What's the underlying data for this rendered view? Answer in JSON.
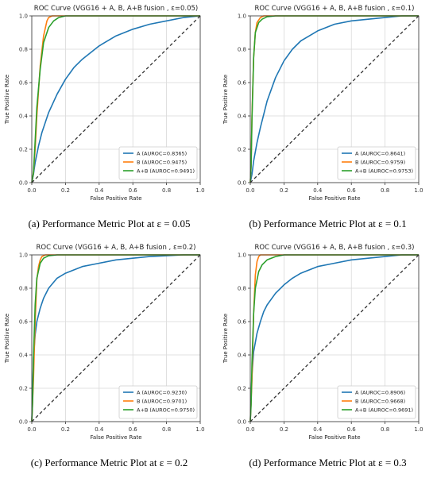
{
  "figure": {
    "captions": [
      "(a) Performance Metric Plot at ε = 0.05",
      "(b) Performance Metric Plot at ε = 0.1",
      "(c) Performance Metric Plot at ε = 0.2",
      "(d) Performance Metric Plot at ε = 0.3"
    ]
  },
  "colors": {
    "A": "#1f77b4",
    "B": "#ff7f0e",
    "AB": "#2ca02c",
    "diag": "#333333",
    "grid": "#d9d9d9"
  },
  "chart_data": [
    {
      "type": "line",
      "title": "ROC Curve (VGG16 + A, B, A+B fusion , ε=0.05)",
      "xlabel": "False Positive Rate",
      "ylabel": "True Positive Rate",
      "xlim": [
        0,
        1
      ],
      "ylim": [
        0,
        1
      ],
      "xticks": [
        "0.0",
        "0.2",
        "0.4",
        "0.6",
        "0.8",
        "1.0"
      ],
      "yticks": [
        "0.0",
        "0.2",
        "0.4",
        "0.6",
        "0.8",
        "1.0"
      ],
      "grid": true,
      "legend_position": "bottom-right",
      "series": [
        {
          "name": "A (AUROC=0.8365)",
          "color_key": "A",
          "x": [
            0,
            0.01,
            0.02,
            0.04,
            0.06,
            0.08,
            0.1,
            0.15,
            0.2,
            0.25,
            0.3,
            0.4,
            0.5,
            0.6,
            0.7,
            0.8,
            0.9,
            1.0
          ],
          "y": [
            0,
            0.05,
            0.12,
            0.22,
            0.3,
            0.36,
            0.42,
            0.53,
            0.62,
            0.69,
            0.74,
            0.82,
            0.88,
            0.92,
            0.95,
            0.97,
            0.99,
            1.0
          ]
        },
        {
          "name": "B (AUROC=0.9475)",
          "color_key": "B",
          "x": [
            0,
            0.01,
            0.02,
            0.03,
            0.05,
            0.07,
            0.09,
            0.1,
            0.12,
            0.2,
            1.0
          ],
          "y": [
            0,
            0.06,
            0.2,
            0.4,
            0.7,
            0.88,
            0.97,
            0.99,
            1.0,
            1.0,
            1.0
          ]
        },
        {
          "name": "A+B (AUROC=0.9491)",
          "color_key": "AB",
          "x": [
            0,
            0.01,
            0.02,
            0.03,
            0.05,
            0.07,
            0.1,
            0.13,
            0.16,
            0.2,
            0.3,
            1.0
          ],
          "y": [
            0,
            0.06,
            0.25,
            0.45,
            0.68,
            0.84,
            0.93,
            0.97,
            0.99,
            1.0,
            1.0,
            1.0
          ]
        },
        {
          "name": "",
          "color_key": "diag",
          "dashed": true,
          "x": [
            0,
            1
          ],
          "y": [
            0,
            1
          ]
        }
      ]
    },
    {
      "type": "line",
      "title": "ROC Curve (VGG16 + A, B, A+B fusion , ε=0.1)",
      "xlabel": "False Positive Rate",
      "ylabel": "True Positive Rate",
      "xlim": [
        0,
        1
      ],
      "ylim": [
        0,
        1
      ],
      "xticks": [
        "0.0",
        "0.2",
        "0.4",
        "0.6",
        "0.8",
        "1.0"
      ],
      "yticks": [
        "0.0",
        "0.2",
        "0.4",
        "0.6",
        "0.8",
        "1.0"
      ],
      "grid": true,
      "legend_position": "bottom-right",
      "series": [
        {
          "name": "A (AUROC=0.8641)",
          "color_key": "A",
          "x": [
            0,
            0.01,
            0.02,
            0.04,
            0.06,
            0.08,
            0.1,
            0.15,
            0.2,
            0.25,
            0.3,
            0.4,
            0.5,
            0.6,
            0.7,
            0.8,
            0.9,
            1.0
          ],
          "y": [
            0,
            0.05,
            0.13,
            0.24,
            0.33,
            0.41,
            0.49,
            0.63,
            0.73,
            0.8,
            0.85,
            0.91,
            0.95,
            0.97,
            0.98,
            0.99,
            1.0,
            1.0
          ]
        },
        {
          "name": "B (AUROC=0.9759)",
          "color_key": "B",
          "x": [
            0,
            0.005,
            0.01,
            0.02,
            0.03,
            0.04,
            0.06,
            0.08,
            0.1,
            1.0
          ],
          "y": [
            0,
            0.1,
            0.4,
            0.75,
            0.9,
            0.96,
            0.99,
            1.0,
            1.0,
            1.0
          ]
        },
        {
          "name": "A+B (AUROC=0.9753)",
          "color_key": "AB",
          "x": [
            0,
            0.005,
            0.01,
            0.02,
            0.03,
            0.05,
            0.07,
            0.1,
            0.15,
            1.0
          ],
          "y": [
            0,
            0.1,
            0.38,
            0.75,
            0.9,
            0.96,
            0.98,
            0.995,
            1.0,
            1.0
          ]
        },
        {
          "name": "",
          "color_key": "diag",
          "dashed": true,
          "x": [
            0,
            1
          ],
          "y": [
            0,
            1
          ]
        }
      ]
    },
    {
      "type": "line",
      "title": "ROC Curve (VGG16 + A, B, A+B fusion , ε=0.2)",
      "xlabel": "False Positive Rate",
      "ylabel": "True Positive Rate",
      "xlim": [
        0,
        1
      ],
      "ylim": [
        0,
        1
      ],
      "xticks": [
        "0.0",
        "0.2",
        "0.4",
        "0.6",
        "0.8",
        "1.0"
      ],
      "yticks": [
        "0.0",
        "0.2",
        "0.4",
        "0.6",
        "0.8",
        "1.0"
      ],
      "grid": true,
      "legend_position": "bottom-right",
      "series": [
        {
          "name": "A (AUROC=0.9230)",
          "color_key": "A",
          "x": [
            0,
            0.005,
            0.01,
            0.02,
            0.03,
            0.05,
            0.07,
            0.1,
            0.15,
            0.2,
            0.3,
            0.4,
            0.5,
            0.6,
            0.7,
            0.8,
            0.9,
            1.0
          ],
          "y": [
            0,
            0.2,
            0.38,
            0.52,
            0.6,
            0.68,
            0.74,
            0.8,
            0.86,
            0.89,
            0.93,
            0.95,
            0.97,
            0.98,
            0.99,
            0.995,
            1.0,
            1.0
          ]
        },
        {
          "name": "B (AUROC=0.9701)",
          "color_key": "B",
          "x": [
            0,
            0.01,
            0.02,
            0.03,
            0.04,
            0.05,
            0.06,
            0.08,
            0.1,
            1.0
          ],
          "y": [
            0,
            0.25,
            0.6,
            0.85,
            0.93,
            0.97,
            0.99,
            1.0,
            1.0,
            1.0
          ]
        },
        {
          "name": "A+B (AUROC=0.9750)",
          "color_key": "AB",
          "x": [
            0,
            0.005,
            0.01,
            0.02,
            0.03,
            0.05,
            0.07,
            0.1,
            0.15,
            1.0
          ],
          "y": [
            0,
            0.12,
            0.38,
            0.7,
            0.86,
            0.95,
            0.98,
            0.995,
            1.0,
            1.0
          ]
        },
        {
          "name": "",
          "color_key": "diag",
          "dashed": true,
          "x": [
            0,
            1
          ],
          "y": [
            0,
            1
          ]
        }
      ]
    },
    {
      "type": "line",
      "title": "ROC Curve (VGG16 + A, B, A+B fusion , ε=0.3)",
      "xlabel": "False Positive Rate",
      "ylabel": "True Positive Rate",
      "xlim": [
        0,
        1
      ],
      "ylim": [
        0,
        1
      ],
      "xticks": [
        "0.0",
        "0.2",
        "0.4",
        "0.6",
        "0.8",
        "1.0"
      ],
      "yticks": [
        "0.0",
        "0.2",
        "0.4",
        "0.6",
        "0.8",
        "1.0"
      ],
      "grid": true,
      "legend_position": "bottom-right",
      "series": [
        {
          "name": "A (AUROC=0.8906)",
          "color_key": "A",
          "x": [
            0,
            0.005,
            0.01,
            0.02,
            0.04,
            0.06,
            0.08,
            0.1,
            0.15,
            0.2,
            0.25,
            0.3,
            0.4,
            0.5,
            0.6,
            0.7,
            0.8,
            0.9,
            1.0
          ],
          "y": [
            0,
            0.15,
            0.28,
            0.42,
            0.53,
            0.6,
            0.66,
            0.7,
            0.77,
            0.82,
            0.86,
            0.89,
            0.93,
            0.95,
            0.97,
            0.98,
            0.99,
            1.0,
            1.0
          ]
        },
        {
          "name": "B (AUROC=0.9668)",
          "color_key": "B",
          "x": [
            0,
            0.01,
            0.02,
            0.03,
            0.04,
            0.05,
            0.06,
            0.08,
            0.1,
            1.0
          ],
          "y": [
            0,
            0.25,
            0.65,
            0.88,
            0.96,
            0.99,
            1.0,
            1.0,
            1.0,
            1.0
          ]
        },
        {
          "name": "A+B (AUROC=0.9691)",
          "color_key": "AB",
          "x": [
            0,
            0.005,
            0.01,
            0.02,
            0.03,
            0.05,
            0.07,
            0.1,
            0.15,
            0.2,
            1.0
          ],
          "y": [
            0,
            0.1,
            0.35,
            0.65,
            0.8,
            0.9,
            0.94,
            0.97,
            0.99,
            1.0,
            1.0
          ]
        },
        {
          "name": "",
          "color_key": "diag",
          "dashed": true,
          "x": [
            0,
            1
          ],
          "y": [
            0,
            1
          ]
        }
      ]
    }
  ]
}
